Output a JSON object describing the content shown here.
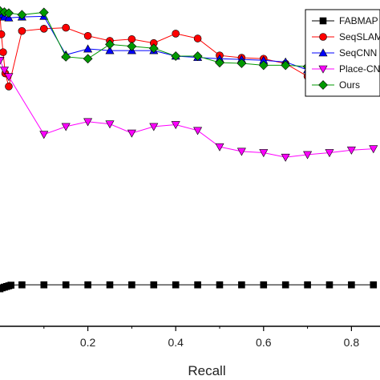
{
  "chart_data": {
    "type": "line",
    "title": "",
    "xlabel": "Recall",
    "ylabel": "",
    "xlim": [
      0,
      0.865
    ],
    "ylim": [
      0,
      1.0
    ],
    "x_ticks": [
      "0.2",
      "0.4",
      "0.6",
      "0.8"
    ],
    "x_tick_values": [
      0.2,
      0.4,
      0.6,
      0.8
    ],
    "grid": false,
    "legend_position": "top-right",
    "series": [
      {
        "name": "FABMAP",
        "color": "#000000",
        "marker": "square",
        "x": [
          0.0,
          0.005,
          0.01,
          0.015,
          0.02,
          0.025,
          0.05,
          0.1,
          0.15,
          0.2,
          0.25,
          0.3,
          0.35,
          0.4,
          0.45,
          0.5,
          0.55,
          0.6,
          0.65,
          0.7,
          0.75,
          0.8,
          0.85
        ],
        "y": [
          0.115,
          0.118,
          0.12,
          0.122,
          0.124,
          0.126,
          0.127,
          0.127,
          0.127,
          0.127,
          0.127,
          0.127,
          0.127,
          0.127,
          0.127,
          0.127,
          0.127,
          0.127,
          0.127,
          0.127,
          0.127,
          0.127,
          0.127
        ]
      },
      {
        "name": "SeqSLAM",
        "color": "#ff0000",
        "marker": "circle",
        "x": [
          0.0,
          0.003,
          0.007,
          0.012,
          0.02,
          0.05,
          0.1,
          0.15,
          0.2,
          0.25,
          0.3,
          0.35,
          0.4,
          0.45,
          0.5,
          0.55,
          0.6,
          0.65,
          0.7,
          0.75,
          0.8,
          0.85
        ],
        "y": [
          0.955,
          0.895,
          0.84,
          0.775,
          0.735,
          0.905,
          0.912,
          0.915,
          0.89,
          0.875,
          0.88,
          0.868,
          0.897,
          0.882,
          0.83,
          0.823,
          0.82,
          0.805,
          0.766,
          0.754,
          0.74,
          0.768
        ]
      },
      {
        "name": "SeqCNN",
        "color": "#0000ff",
        "marker": "triangle-up",
        "x": [
          0.0,
          0.01,
          0.02,
          0.05,
          0.1,
          0.15,
          0.2,
          0.25,
          0.3,
          0.35,
          0.4,
          0.45,
          0.5,
          0.55,
          0.6,
          0.65,
          0.7,
          0.75,
          0.8,
          0.85
        ],
        "y": [
          0.955,
          0.948,
          0.945,
          0.948,
          0.95,
          0.832,
          0.85,
          0.845,
          0.845,
          0.845,
          0.828,
          0.824,
          0.82,
          0.818,
          0.815,
          0.81,
          0.786,
          0.778,
          0.776,
          0.776
        ]
      },
      {
        "name": "Place-CNN",
        "color": "#ff00ff",
        "marker": "triangle-down",
        "x": [
          0.0,
          0.01,
          0.02,
          0.1,
          0.15,
          0.2,
          0.25,
          0.3,
          0.35,
          0.4,
          0.45,
          0.5,
          0.55,
          0.6,
          0.65,
          0.7,
          0.75,
          0.8,
          0.85
        ],
        "y": [
          0.815,
          0.785,
          0.765,
          0.588,
          0.612,
          0.627,
          0.62,
          0.592,
          0.612,
          0.618,
          0.6,
          0.55,
          0.536,
          0.532,
          0.518,
          0.526,
          0.532,
          0.54,
          0.544
        ]
      },
      {
        "name": "Ours",
        "color": "#009900",
        "marker": "diamond",
        "x": [
          0.0,
          0.01,
          0.02,
          0.05,
          0.1,
          0.15,
          0.2,
          0.25,
          0.3,
          0.35,
          0.4,
          0.45,
          0.5,
          0.55,
          0.6,
          0.65,
          0.7,
          0.75,
          0.8,
          0.85
        ],
        "y": [
          0.967,
          0.963,
          0.96,
          0.955,
          0.962,
          0.826,
          0.82,
          0.864,
          0.858,
          0.852,
          0.828,
          0.828,
          0.808,
          0.806,
          0.8,
          0.8,
          0.796,
          0.796,
          0.789,
          0.782
        ]
      }
    ]
  }
}
